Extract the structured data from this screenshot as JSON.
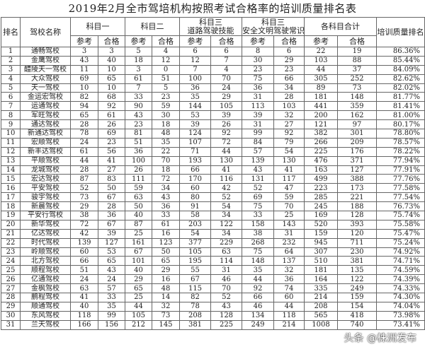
{
  "title": "2019年2月全市驾培机构按照考试合格率的培训质量排名表",
  "headers": {
    "rank": "排名",
    "name": "驾校名称",
    "k1": "科目一",
    "k2": "科目二",
    "k3a_1": "科目三",
    "k3a_2": "道路驾驶技能",
    "k3b_1": "科目三",
    "k3b_2": "安全文明驾驶常识",
    "total": "各科目合计",
    "rate": "培训质量排名",
    "ref": "参考",
    "pass": "合格"
  },
  "rows": [
    [
      "1",
      "通畅驾校",
      "3",
      "3",
      "5",
      "4",
      "6",
      "6",
      "8",
      "6",
      "22",
      "19",
      "86.36%"
    ],
    [
      "2",
      "金鹰驾校",
      "43",
      "40",
      "18",
      "12",
      "12",
      "7",
      "30",
      "29",
      "103",
      "88",
      "85.44%"
    ],
    [
      "3",
      "醴陵天一驾校",
      "11",
      "10",
      "3",
      "0",
      "7",
      "4",
      "23",
      "23",
      "44",
      "37",
      "84.09%"
    ],
    [
      "4",
      "大众驾校",
      "69",
      "65",
      "61",
      "51",
      "100",
      "70",
      "75",
      "66",
      "305",
      "252",
      "82.62%"
    ],
    [
      "5",
      "天一驾校",
      "10",
      "10",
      "7",
      "5",
      "36",
      "24",
      "36",
      "34",
      "89",
      "73",
      "82.02%"
    ],
    [
      "6",
      "金运宏驾校",
      "82",
      "68",
      "33",
      "23",
      "35",
      "29",
      "31",
      "28",
      "181",
      "148",
      "81.77%"
    ],
    [
      "7",
      "运通驾校",
      "94",
      "92",
      "90",
      "59",
      "144",
      "105",
      "113",
      "103",
      "441",
      "359",
      "81.41%"
    ],
    [
      "8",
      "军旺驾校",
      "65",
      "61",
      "43",
      "30",
      "53",
      "39",
      "39",
      "32",
      "200",
      "162",
      "81.00%"
    ],
    [
      "9",
      "通达驾校",
      "28",
      "26",
      "23",
      "18",
      "39",
      "26",
      "31",
      "27",
      "121",
      "97",
      "80.17%"
    ],
    [
      "10",
      "新通达驾校",
      "78",
      "69",
      "81",
      "48",
      "124",
      "92",
      "99",
      "92",
      "382",
      "301",
      "78.80%"
    ],
    [
      "11",
      "宏顺驾校",
      "24",
      "23",
      "51",
      "35",
      "107",
      "72",
      "84",
      "79",
      "266",
      "209",
      "78.57%"
    ],
    [
      "12",
      "新丰达驾校",
      "61",
      "56",
      "36",
      "22",
      "71",
      "44",
      "57",
      "54",
      "225",
      "176",
      "78.22%"
    ],
    [
      "13",
      "平顺驾校",
      "44",
      "41",
      "100",
      "70",
      "193",
      "130",
      "139",
      "130",
      "476",
      "371",
      "77.94%"
    ],
    [
      "14",
      "龙城驾校",
      "28",
      "27",
      "26",
      "18",
      "66",
      "41",
      "43",
      "41",
      "163",
      "127",
      "77.91%"
    ],
    [
      "15",
      "宏达驾校",
      "87",
      "83",
      "111",
      "72",
      "170",
      "116",
      "131",
      "117",
      "499",
      "388",
      "77.76%"
    ],
    [
      "16",
      "平安驾校",
      "52",
      "50",
      "59",
      "34",
      "60",
      "42",
      "52",
      "47",
      "223",
      "173",
      "77.58%"
    ],
    [
      "17",
      "骏宇驾校",
      "73",
      "67",
      "63",
      "43",
      "80",
      "52",
      "69",
      "59",
      "285",
      "221",
      "77.54%"
    ],
    [
      "18",
      "新晨驾校",
      "29",
      "28",
      "50",
      "36",
      "91",
      "54",
      "75",
      "70",
      "245",
      "188",
      "76.73%"
    ],
    [
      "19",
      "平安行驾校",
      "38",
      "36",
      "40",
      "33",
      "58",
      "34",
      "33",
      "25",
      "169",
      "128",
      "75.74%"
    ],
    [
      "20",
      "新华驾校",
      "72",
      "67",
      "87",
      "61",
      "203",
      "122",
      "158",
      "143",
      "520",
      "393",
      "75.58%"
    ],
    [
      "21",
      "亿达驾校",
      "42",
      "39",
      "25",
      "16",
      "54",
      "34",
      "38",
      "31",
      "159",
      "120",
      "75.47%"
    ],
    [
      "22",
      "时代驾校",
      "139",
      "127",
      "161",
      "123",
      "377",
      "229",
      "268",
      "232",
      "945",
      "711",
      "75.24%"
    ],
    [
      "23",
      "岭顺驾校",
      "60",
      "53",
      "67",
      "50",
      "105",
      "63",
      "75",
      "64",
      "307",
      "230",
      "74.92%"
    ],
    [
      "24",
      "北方驾校",
      "66",
      "65",
      "101",
      "65",
      "195",
      "114",
      "148",
      "137",
      "510",
      "381",
      "74.71%"
    ],
    [
      "25",
      "顺程驾校",
      "51",
      "43",
      "40",
      "29",
      "55",
      "31",
      "35",
      "32",
      "181",
      "135",
      "74.59%"
    ],
    [
      "26",
      "亿通驾校",
      "24",
      "24",
      "29",
      "16",
      "67",
      "46",
      "44",
      "36",
      "164",
      "122",
      "74.39%"
    ],
    [
      "27",
      "金枫驾校",
      "63",
      "57",
      "65",
      "48",
      "115",
      "70",
      "92",
      "74",
      "335",
      "249",
      "74.33%"
    ],
    [
      "28",
      "鹏程驾校",
      "41",
      "33",
      "25",
      "14",
      "82",
      "52",
      "66",
      "60",
      "214",
      "159",
      "74.30%"
    ],
    [
      "29",
      "顺通驾校",
      "40",
      "35",
      "44",
      "32",
      "78",
      "43",
      "46",
      "44",
      "208",
      "154",
      "74.04%"
    ],
    [
      "30",
      "东风驾校",
      "118",
      "99",
      "105",
      "73",
      "208",
      "128",
      "134",
      "118",
      "565",
      "418",
      "73.98%"
    ],
    [
      "31",
      "兰天驾校",
      "166",
      "156",
      "212",
      "145",
      "381",
      "225",
      "249",
      "214",
      "1008",
      "740",
      "73.41%"
    ]
  ],
  "watermark": "头条 @株洲发布"
}
